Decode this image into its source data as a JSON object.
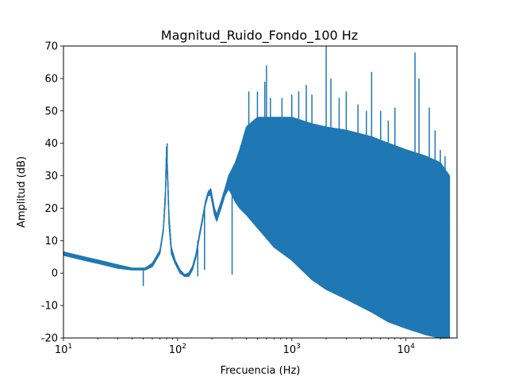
{
  "chart_data": {
    "type": "line",
    "title": "Magnitud_Ruido_Fondo_100 Hz",
    "xlabel": "Frecuencia (Hz)",
    "ylabel": "Amplitud (dB)",
    "xscale": "log",
    "xlim": [
      10,
      28000
    ],
    "ylim": [
      -20,
      70
    ],
    "grid": false,
    "x_ticks": [
      {
        "value": 10,
        "base": "10",
        "exp": "1"
      },
      {
        "value": 100,
        "base": "10",
        "exp": "2"
      },
      {
        "value": 1000,
        "base": "10",
        "exp": "3"
      },
      {
        "value": 10000,
        "base": "10",
        "exp": "4"
      }
    ],
    "y_ticks": [
      -20,
      -10,
      0,
      10,
      20,
      30,
      40,
      50,
      60,
      70
    ],
    "series": [
      {
        "color": "#1f77b4",
        "envelope": {
          "x": [
            10,
            15,
            20,
            30,
            40,
            48,
            50,
            52,
            60,
            70,
            75,
            78,
            80,
            82,
            84,
            88,
            95,
            105,
            115,
            125,
            135,
            145,
            150,
            155,
            165,
            175,
            185,
            195,
            200,
            210,
            220,
            240,
            260,
            280,
            300,
            320,
            350,
            400,
            500,
            700,
            1000,
            1500,
            2000,
            3000,
            5000,
            7000,
            10000,
            15000,
            20000,
            24000
          ],
          "upper": [
            6.5,
            5,
            4,
            2.5,
            1.5,
            1.5,
            1.5,
            1.5,
            3,
            7,
            14,
            25,
            40,
            30,
            18,
            8,
            4,
            1,
            -0.5,
            0,
            2,
            6,
            9,
            12,
            17,
            22,
            25,
            26,
            24,
            20,
            18,
            22,
            26,
            30,
            32,
            34,
            38,
            45,
            48,
            48,
            48,
            46,
            45,
            44,
            42,
            40,
            38,
            36,
            34,
            30
          ],
          "lower": [
            5.5,
            4,
            3,
            1.5,
            1,
            1,
            1,
            1,
            2,
            6,
            13,
            22,
            35,
            27,
            15,
            6,
            3,
            0,
            -1,
            -1,
            1,
            5,
            8,
            11,
            16,
            21,
            24,
            24,
            22,
            18,
            16,
            20,
            24,
            26,
            24,
            22,
            20,
            18,
            14,
            8,
            4,
            -2,
            -5,
            -8,
            -12,
            -15,
            -17,
            -19,
            -20,
            -20
          ]
        },
        "peaks": [
          {
            "x": 50,
            "y": -4
          },
          {
            "x": 81,
            "y": 40
          },
          {
            "x": 150,
            "y": 10
          },
          {
            "x": 150,
            "y": -1
          },
          {
            "x": 172,
            "y": 10
          },
          {
            "x": 172,
            "y": 1
          },
          {
            "x": 300,
            "y": 32
          },
          {
            "x": 300,
            "y": -0.5
          },
          {
            "x": 420,
            "y": 56
          },
          {
            "x": 500,
            "y": 56
          },
          {
            "x": 580,
            "y": 59
          },
          {
            "x": 600,
            "y": 64
          },
          {
            "x": 650,
            "y": 54
          },
          {
            "x": 820,
            "y": 54
          },
          {
            "x": 1000,
            "y": 55
          },
          {
            "x": 1150,
            "y": 56
          },
          {
            "x": 1340,
            "y": 58
          },
          {
            "x": 1500,
            "y": 55
          },
          {
            "x": 2000,
            "y": 70
          },
          {
            "x": 2200,
            "y": 60
          },
          {
            "x": 2600,
            "y": 54
          },
          {
            "x": 3000,
            "y": 56
          },
          {
            "x": 3800,
            "y": 52
          },
          {
            "x": 4500,
            "y": 50
          },
          {
            "x": 5000,
            "y": 62
          },
          {
            "x": 6000,
            "y": 50
          },
          {
            "x": 7000,
            "y": 47
          },
          {
            "x": 8000,
            "y": 51
          },
          {
            "x": 12000,
            "y": 68
          },
          {
            "x": 13000,
            "y": 60
          },
          {
            "x": 16000,
            "y": 51
          },
          {
            "x": 18000,
            "y": 44
          },
          {
            "x": 20000,
            "y": 38
          },
          {
            "x": 22000,
            "y": 36
          }
        ]
      }
    ]
  }
}
